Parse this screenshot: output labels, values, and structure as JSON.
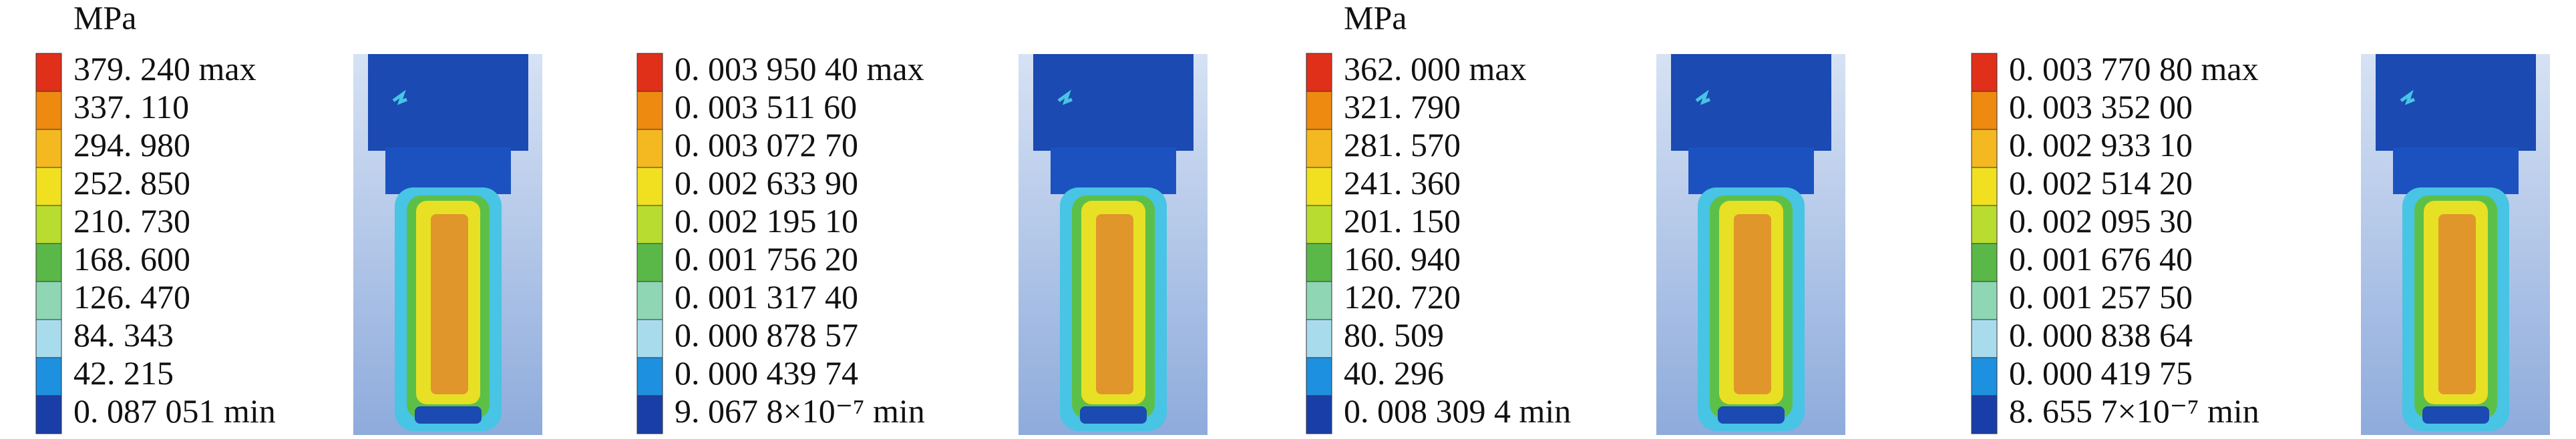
{
  "panels": [
    {
      "unit": "MPa",
      "labels": [
        "379. 240 max",
        "337. 110",
        "294. 980",
        "252. 850",
        "210. 730",
        "168. 600",
        "126. 470",
        "84. 343",
        "42. 215",
        "0. 087 051 min"
      ]
    },
    {
      "labels": [
        "0. 003 950 40 max",
        "0. 003 511 60",
        "0. 003 072 70",
        "0. 002 633 90",
        "0. 002 195 10",
        "0. 001 756 20",
        "0. 001 317 40",
        "0. 000 878 57",
        "0. 000 439 74",
        "9. 067 8×10⁻⁷ min"
      ]
    },
    {
      "unit": "MPa",
      "labels": [
        "362. 000 max",
        "321. 790",
        "281. 570",
        "241. 360",
        "201. 150",
        "160. 940",
        "120. 720",
        "80. 509",
        "40. 296",
        "0. 008 309 4 min"
      ]
    },
    {
      "labels": [
        "0. 003 770 80 max",
        "0. 003 352 00",
        "0. 002 933 10",
        "0. 002 514 20",
        "0. 002 095 30",
        "0. 001 676 40",
        "0. 001 257 50",
        "0. 000 838 64",
        "0. 000 419 75",
        "8. 655 7×10⁻⁷ min"
      ]
    }
  ]
}
